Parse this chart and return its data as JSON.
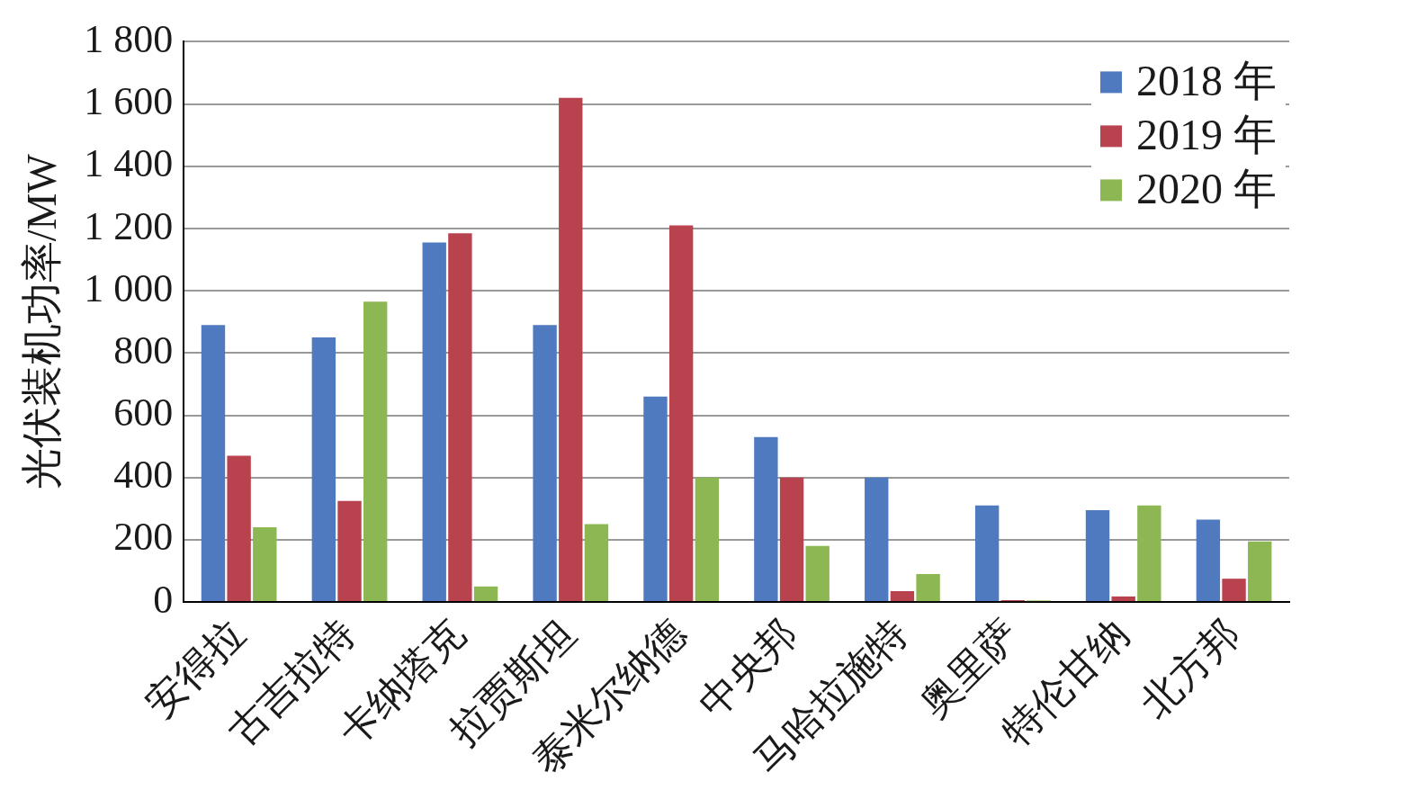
{
  "chart_data": {
    "type": "bar",
    "ylabel": "光伏装机功率/MW",
    "categories": [
      "安得拉",
      "古吉拉特",
      "卡纳塔克",
      "拉贾斯坦",
      "泰米尔纳德",
      "中央邦",
      "马哈拉施特",
      "奥里萨",
      "特伦甘纳",
      "北方邦"
    ],
    "series": [
      {
        "name": "2018 年",
        "color": "#4f7ac0",
        "values": [
          890,
          850,
          1155,
          890,
          660,
          530,
          400,
          310,
          295,
          265
        ]
      },
      {
        "name": "2019 年",
        "color": "#b9424f",
        "values": [
          470,
          325,
          1185,
          1620,
          1210,
          400,
          35,
          6,
          18,
          75
        ]
      },
      {
        "name": "2020 年",
        "color": "#8cb752",
        "values": [
          240,
          965,
          50,
          250,
          400,
          180,
          90,
          5,
          310,
          195
        ]
      }
    ],
    "ylim": [
      0,
      1800
    ],
    "yticks": [
      0,
      200,
      400,
      600,
      800,
      {
        "value": 1000,
        "label": "1 000"
      },
      {
        "value": 1200,
        "label": "1 200"
      },
      {
        "value": 1400,
        "label": "1 400"
      },
      {
        "value": 1600,
        "label": "1 600"
      },
      {
        "value": 1800,
        "label": "1 800"
      }
    ],
    "grid": "y",
    "legend": "top right"
  }
}
